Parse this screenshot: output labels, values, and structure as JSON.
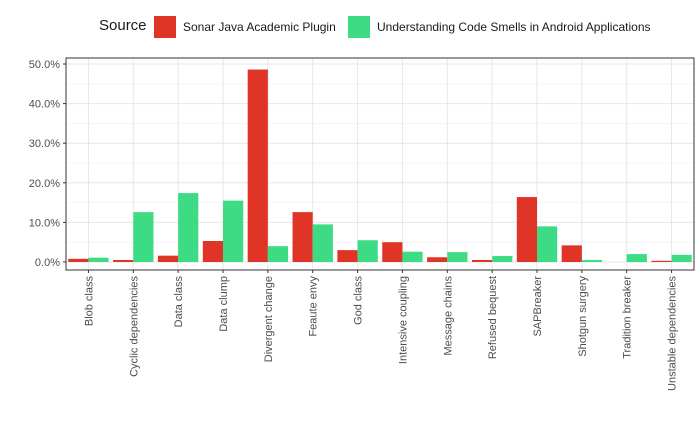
{
  "chart_data": {
    "type": "bar",
    "legend": {
      "title": "Source",
      "position": "top"
    },
    "categories": [
      "Blob class",
      "Cyclic dependencies",
      "Data class",
      "Data clump",
      "Divergent change",
      "Feaute envy",
      "God class",
      "Intensive coupling",
      "Message chains",
      "Refused bequest",
      "SAPBreaker",
      "Shotgun surgery",
      "Tradition breaker",
      "Unstable dependencies"
    ],
    "series": [
      {
        "name": "Sonar Java Academic Plugin",
        "color": "#e03426",
        "values": [
          0.8,
          0.5,
          1.6,
          5.3,
          48.6,
          12.6,
          3.0,
          5.0,
          1.2,
          0.5,
          16.4,
          4.2,
          0.0,
          0.3
        ]
      },
      {
        "name": "Understanding Code Smells in Android Applications",
        "color": "#3ddc84",
        "values": [
          1.1,
          12.6,
          17.4,
          15.5,
          4.0,
          9.5,
          5.5,
          2.6,
          2.5,
          1.5,
          9.0,
          0.5,
          2.0,
          1.8
        ]
      }
    ],
    "ylim": [
      0,
      50
    ],
    "yticks": [
      0,
      10,
      20,
      30,
      40,
      50
    ],
    "ytick_labels": [
      "0.0%",
      "10.0%",
      "20.0%",
      "30.0%",
      "40.0%",
      "50.0%"
    ],
    "grid": true,
    "xlabel": "",
    "ylabel": ""
  }
}
